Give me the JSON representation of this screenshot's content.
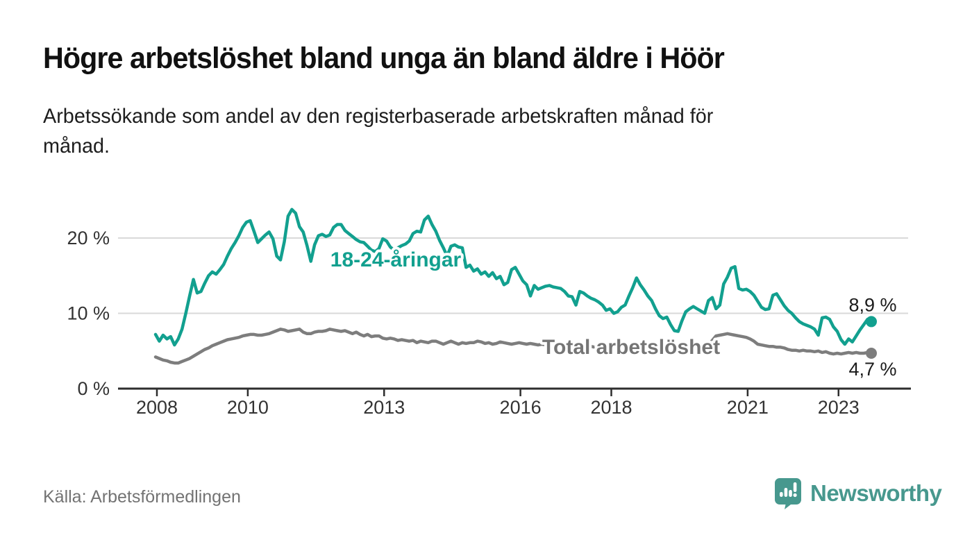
{
  "header": {
    "title": "Högre arbetslöshet bland unga än bland äldre i Höör",
    "subtitle_lines": [
      "Arbetssökande som andel av den registerbaserade arbetskraften månad för",
      "månad."
    ]
  },
  "footer": {
    "source": "Källa: Arbetsförmedlingen",
    "brand_name": "Newsworthy"
  },
  "colors": {
    "teal_line": "#12a08f",
    "gray_line": "#7d7d7d",
    "gray_label": "#757575",
    "end_value_text": "#1b1b1b",
    "tick_text": "#333333",
    "grid": "#d9d9d9",
    "axis": "#2e2e2e",
    "brand_teal": "#47988e",
    "source_text": "#737373"
  },
  "chart_data": {
    "type": "line",
    "title": "Högre arbetslöshet bland unga än bland äldre i Höör",
    "x_start": "2008-01",
    "x_end": "2023-10",
    "x_frequency": "monthly",
    "grid": "horizontal",
    "ylim": [
      0,
      24
    ],
    "y_ticks": [
      {
        "value": 0,
        "label": "0 %"
      },
      {
        "value": 10,
        "label": "10 %"
      },
      {
        "value": 20,
        "label": "20 %"
      }
    ],
    "x_ticks": [
      {
        "year": 2008,
        "label": "2008"
      },
      {
        "year": 2010,
        "label": "2010"
      },
      {
        "year": 2013,
        "label": "2013"
      },
      {
        "year": 2016,
        "label": "2016"
      },
      {
        "year": 2018,
        "label": "2018"
      },
      {
        "year": 2021,
        "label": "2021"
      },
      {
        "year": 2023,
        "label": "2023"
      }
    ],
    "series": [
      {
        "name": "18-24-åringar",
        "color": "#12a08f",
        "end_label": "8,9 %",
        "end_value": 8.9,
        "values": [
          7.2,
          6.3,
          7.1,
          6.6,
          6.9,
          5.8,
          6.6,
          7.9,
          10,
          12.3,
          14.5,
          12.7,
          12.9,
          14,
          15,
          15.5,
          15.2,
          15.8,
          16.5,
          17.6,
          18.6,
          19.4,
          20.3,
          21.4,
          22.1,
          22.3,
          20.9,
          19.4,
          19.9,
          20.4,
          20.8,
          19.9,
          17.6,
          17.1,
          19.5,
          22.9,
          23.8,
          23.3,
          21.5,
          20.8,
          19,
          16.9,
          19.1,
          20.3,
          20.5,
          20.2,
          20.4,
          21.4,
          21.8,
          21.8,
          21,
          20.6,
          20.2,
          19.8,
          19.5,
          19.4,
          18.9,
          18.4,
          18.2,
          18.6,
          19.9,
          19.6,
          18.8,
          18.4,
          18.7,
          19,
          19.2,
          19.6,
          20.6,
          20.9,
          20.8,
          22.4,
          22.9,
          21.8,
          20.9,
          19.7,
          18.7,
          17.6,
          18.9,
          19.1,
          18.8,
          18.7,
          16.1,
          16.4,
          15.6,
          15.9,
          15.2,
          15.5,
          14.9,
          15.4,
          14.6,
          14.9,
          13.8,
          14.1,
          15.8,
          16.1,
          15.2,
          14.3,
          13.8,
          12.3,
          13.7,
          13.2,
          13.4,
          13.6,
          13.7,
          13.5,
          13.4,
          13.3,
          12.9,
          12.3,
          12.2,
          11.1,
          12.9,
          12.7,
          12.3,
          12,
          11.8,
          11.5,
          11.1,
          10.4,
          10.6,
          10,
          10.2,
          10.8,
          11.1,
          12.3,
          13.4,
          14.7,
          13.8,
          13.1,
          12.3,
          11.7,
          10.6,
          9.7,
          9.3,
          9.5,
          8.5,
          7.7,
          7.6,
          9,
          10.2,
          10.6,
          10.9,
          10.6,
          10.3,
          10,
          11.7,
          12.1,
          10.6,
          11.1,
          13.9,
          14.8,
          16,
          16.2,
          13.3,
          13.1,
          13.2,
          12.9,
          12.4,
          11.6,
          10.8,
          10.5,
          10.6,
          12.4,
          12.6,
          11.8,
          11,
          10.4,
          10,
          9.4,
          8.9,
          8.6,
          8.4,
          8.2,
          7.9,
          7.1,
          9.4,
          9.5,
          9.2,
          8.2,
          7.6,
          6.5,
          5.9,
          6.6,
          6.2,
          7,
          7.8,
          8.5,
          9.2,
          8.9
        ]
      },
      {
        "name": "Total arbetslöshet",
        "color": "#7d7d7d",
        "end_label": "4,7 %",
        "end_value": 4.7,
        "values": [
          4.2,
          4,
          3.8,
          3.7,
          3.5,
          3.4,
          3.4,
          3.6,
          3.8,
          4,
          4.3,
          4.6,
          4.9,
          5.2,
          5.4,
          5.7,
          5.9,
          6.1,
          6.3,
          6.5,
          6.6,
          6.7,
          6.8,
          7,
          7.1,
          7.2,
          7.2,
          7.1,
          7.1,
          7.2,
          7.3,
          7.5,
          7.7,
          7.9,
          7.8,
          7.6,
          7.7,
          7.8,
          7.9,
          7.5,
          7.3,
          7.3,
          7.5,
          7.6,
          7.6,
          7.7,
          7.9,
          7.8,
          7.7,
          7.6,
          7.7,
          7.5,
          7.3,
          7.5,
          7.2,
          7,
          7.2,
          6.9,
          7,
          7,
          6.7,
          6.6,
          6.7,
          6.6,
          6.4,
          6.5,
          6.4,
          6.3,
          6.4,
          6.1,
          6.3,
          6.2,
          6.1,
          6.3,
          6.3,
          6.1,
          5.9,
          6.1,
          6.3,
          6.1,
          5.9,
          6.1,
          6,
          6.1,
          6.1,
          6.3,
          6.2,
          6,
          6.1,
          5.9,
          6,
          6.2,
          6.1,
          6,
          5.9,
          6,
          6.1,
          6,
          5.9,
          6,
          5.9,
          5.8,
          5.9,
          5.8,
          5.7,
          5.8,
          5.7,
          5.8,
          5.7,
          5.6,
          5.7,
          5.6,
          5.5,
          5.6,
          5.5,
          5.6,
          5.5,
          5.4,
          5.5,
          5.4,
          5.5,
          5.4,
          5.3,
          5.4,
          5.3,
          5.4,
          5.3,
          5.2,
          5.3,
          5.2,
          5.3,
          5.2,
          5.3,
          5.2,
          5.1,
          5.2,
          5.1,
          5.2,
          5.3,
          5.2,
          5.3,
          5.2,
          5.3,
          5.3,
          5.4,
          5.5,
          5.8,
          6.4,
          7,
          7.1,
          7.2,
          7.3,
          7.2,
          7.1,
          7,
          6.9,
          6.8,
          6.6,
          6.3,
          5.9,
          5.8,
          5.7,
          5.6,
          5.6,
          5.5,
          5.5,
          5.4,
          5.2,
          5.1,
          5.1,
          5,
          5.1,
          5,
          5,
          4.9,
          5,
          4.8,
          4.9,
          4.7,
          4.6,
          4.7,
          4.6,
          4.7,
          4.8,
          4.7,
          4.8,
          4.7,
          4.7,
          4.8,
          4.7
        ]
      }
    ]
  }
}
